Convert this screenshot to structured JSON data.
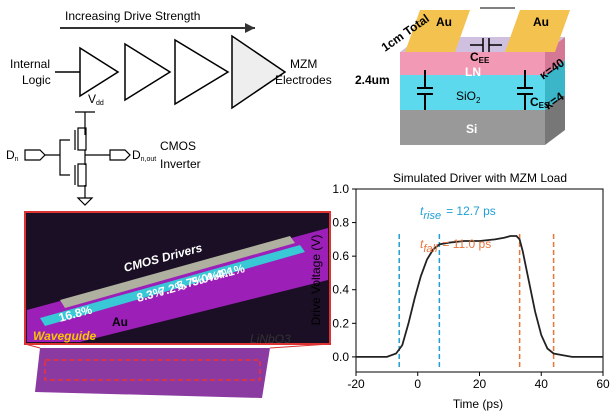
{
  "diagram": {
    "drive_strength": "Increasing Drive Strength",
    "internal_logic": [
      "Internal",
      "Logic"
    ],
    "mzm_electrodes": [
      "MZM",
      "Electrodes"
    ],
    "vdd": {
      "base": "V",
      "sub": "dd"
    },
    "d_in": {
      "base": "D",
      "sub": "n"
    },
    "d_out": {
      "base": "D",
      "sub": "n,out"
    },
    "cmos_inverter": [
      "CMOS",
      "Inverter"
    ]
  },
  "micrograph": {
    "cmos_drivers": "CMOS Drivers",
    "au": "Au",
    "percentages": [
      "16.8%",
      "8.3%",
      "7.2%",
      "5.7%",
      "5.0%",
      "4.4%",
      "4.1%"
    ],
    "waveguide": "Waveguide",
    "substrate": "LiNbO3"
  },
  "cross_section": {
    "total_length": "1cm Total",
    "electrodes": [
      "Au",
      "Au"
    ],
    "c_ee": {
      "base": "C",
      "sub": "EE"
    },
    "ln": "LN",
    "kappa_ln": "κ=40",
    "kappa_sio2": "κ=4",
    "height": "2.4um",
    "sio2": {
      "base": "SiO",
      "sub": "2"
    },
    "c_es": {
      "base": "C",
      "sub": "ES"
    },
    "si": "Si"
  },
  "chart_data": {
    "type": "line",
    "title": "Simulated Driver with MZM Load",
    "x_label": "Time (ps)",
    "y_label": "Drive Voltage (V)",
    "x": [
      -20,
      -10,
      -7,
      -5,
      -3,
      -1,
      1,
      3,
      5,
      7,
      10,
      15,
      20,
      25,
      28,
      30,
      32,
      33,
      34,
      36,
      38,
      40,
      42,
      44,
      47,
      50,
      55,
      60
    ],
    "values": [
      0.0,
      0.0,
      0.02,
      0.07,
      0.2,
      0.35,
      0.48,
      0.58,
      0.64,
      0.67,
      0.68,
      0.69,
      0.69,
      0.7,
      0.71,
      0.72,
      0.72,
      0.7,
      0.63,
      0.45,
      0.27,
      0.13,
      0.05,
      0.02,
      0.01,
      0.0,
      0.0,
      0.0
    ],
    "color": "#222222",
    "xlim": [
      -20,
      60
    ],
    "xticks": [
      -20,
      0,
      20,
      40,
      60
    ],
    "ylim": [
      -0.09,
      1.0
    ],
    "yticks": [
      {
        "value": 0,
        "label": "0.0"
      },
      0.2,
      0.4,
      0.6,
      0.8,
      {
        "value": 1,
        "label": "1.0"
      }
    ],
    "vlines": [
      {
        "x": -6,
        "color": "#1f9fd6"
      },
      {
        "x": 7,
        "color": "#1f9fd6"
      },
      {
        "x": 33,
        "color": "#e8743b"
      },
      {
        "x": 44,
        "color": "#e8743b"
      }
    ],
    "annotations": [
      {
        "symbol": "t",
        "sub": "rise",
        "text": "= 12.7 ps",
        "color": "#1f9fd6"
      },
      {
        "symbol": "t",
        "sub": "fall",
        "text": "= 11.0 ps",
        "color": "#e8743b"
      }
    ]
  }
}
